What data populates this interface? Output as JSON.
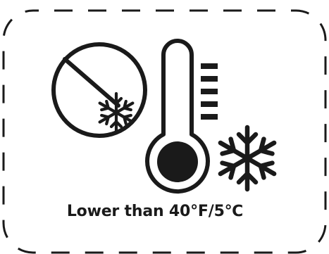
{
  "label": {
    "caption": "Lower than 40°F/5℃",
    "ink_color": "#1a1a1a",
    "background_color": "#ffffff"
  },
  "icons": {
    "no_freeze": "no-freeze-icon",
    "thermometer": "thermometer-icon",
    "snowflake_small": "snowflake-icon",
    "snowflake_large": "snowflake-icon"
  }
}
